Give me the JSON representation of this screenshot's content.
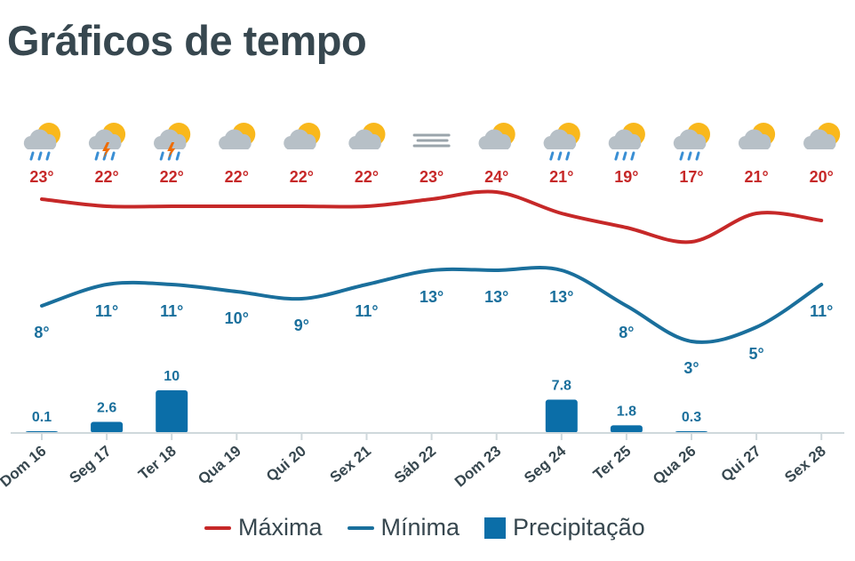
{
  "page": {
    "title": "Gráficos de tempo"
  },
  "colors": {
    "max": "#c62828",
    "min": "#1a6f9c",
    "precip": "#0b6ea8",
    "text": "#37474f",
    "axis": "#cfd8dc"
  },
  "legend": [
    {
      "label": "Máxima",
      "kind": "line",
      "color": "#c62828"
    },
    {
      "label": "Mínima",
      "kind": "line",
      "color": "#1a6f9c"
    },
    {
      "label": "Precipitação",
      "kind": "box",
      "color": "#0b6ea8"
    }
  ],
  "chart_data": {
    "type": "line",
    "categories": [
      "Dom 16",
      "Seg 17",
      "Ter 18",
      "Qua 19",
      "Qui 20",
      "Sex 21",
      "Sáb 22",
      "Dom 23",
      "Seg 24",
      "Ter 25",
      "Qua 26",
      "Qui 27",
      "Sex 28"
    ],
    "icons": [
      "sun-cloud-rain-icon",
      "sun-cloud-storm-icon",
      "sun-cloud-storm-icon",
      "sun-cloud-icon",
      "sun-cloud-icon",
      "sun-cloud-icon",
      "fog-icon",
      "sun-cloud-icon",
      "sun-cloud-rain-icon",
      "sun-cloud-rain-icon",
      "sun-cloud-rain-icon",
      "sun-cloud-icon",
      "sun-cloud-icon"
    ],
    "series": [
      {
        "name": "Máxima",
        "values": [
          23,
          22,
          22,
          22,
          22,
          22,
          23,
          24,
          21,
          19,
          17,
          21,
          20
        ],
        "labels": [
          "23°",
          "22°",
          "22°",
          "22°",
          "22°",
          "22°",
          "23°",
          "24°",
          "21°",
          "19°",
          "17°",
          "21°",
          "20°"
        ]
      },
      {
        "name": "Mínima",
        "values": [
          8,
          11,
          11,
          10,
          9,
          11,
          13,
          13,
          13,
          8,
          3,
          5,
          11
        ],
        "labels": [
          "8°",
          "11°",
          "11°",
          "10°",
          "9°",
          "11°",
          "13°",
          "13°",
          "13°",
          "8°",
          "3°",
          "5°",
          "11°"
        ]
      },
      {
        "name": "Precipitação",
        "type": "bar",
        "values": [
          0.1,
          2.6,
          10,
          0,
          0,
          0,
          0,
          0,
          7.8,
          1.8,
          0.3,
          0,
          0
        ],
        "labels": [
          "0.1",
          "2.6",
          "10",
          "",
          "",
          "",
          "",
          "",
          "7.8",
          "1.8",
          "0.3",
          "",
          ""
        ]
      }
    ],
    "ylim_temp": [
      0,
      26
    ],
    "ylim_precip": [
      0,
      10
    ],
    "legend_position": "bottom"
  }
}
